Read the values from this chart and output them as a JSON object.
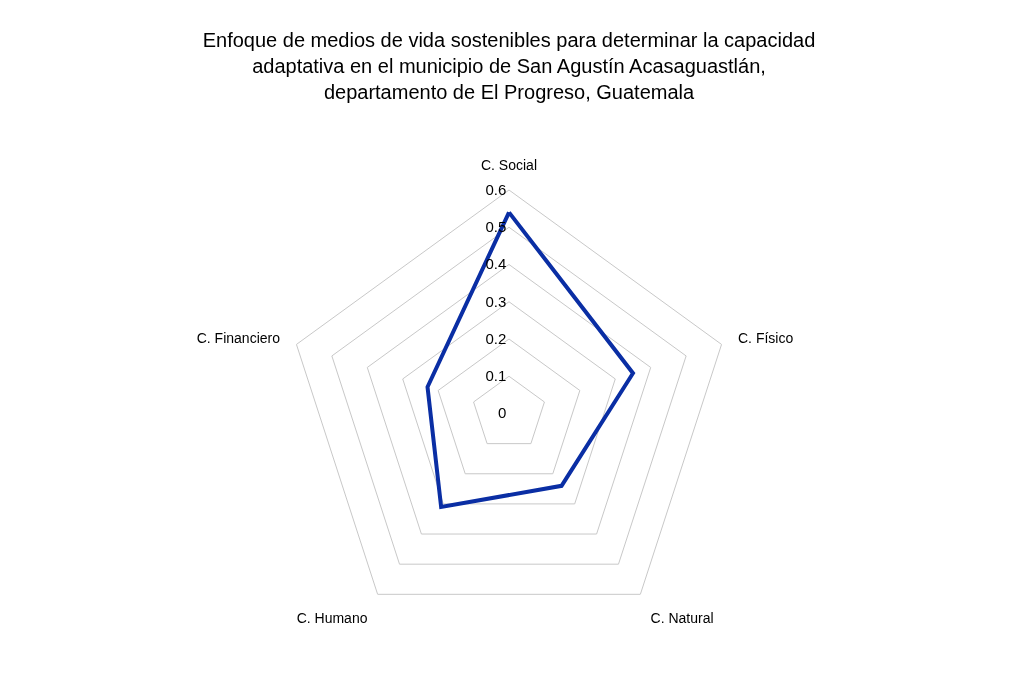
{
  "chart_data": {
    "type": "radar",
    "title": "Enfoque de medios de vida sostenibles para determinar la capacidad\nadaptativa en el municipio de San Agustín Acasaguastlán,\ndepartamento de El Progreso, Guatemala",
    "categories": [
      "C. Social",
      "C. Físico",
      "C. Natural",
      "C. Humano",
      "C. Financiero"
    ],
    "series": [
      {
        "color": "#0a2ea4",
        "values": [
          0.54,
          0.35,
          0.24,
          0.31,
          0.23
        ]
      }
    ],
    "ylim": [
      0,
      0.6
    ],
    "yticks": [
      0,
      0.1,
      0.2,
      0.3,
      0.4,
      0.5,
      0.6
    ],
    "grid": true
  }
}
